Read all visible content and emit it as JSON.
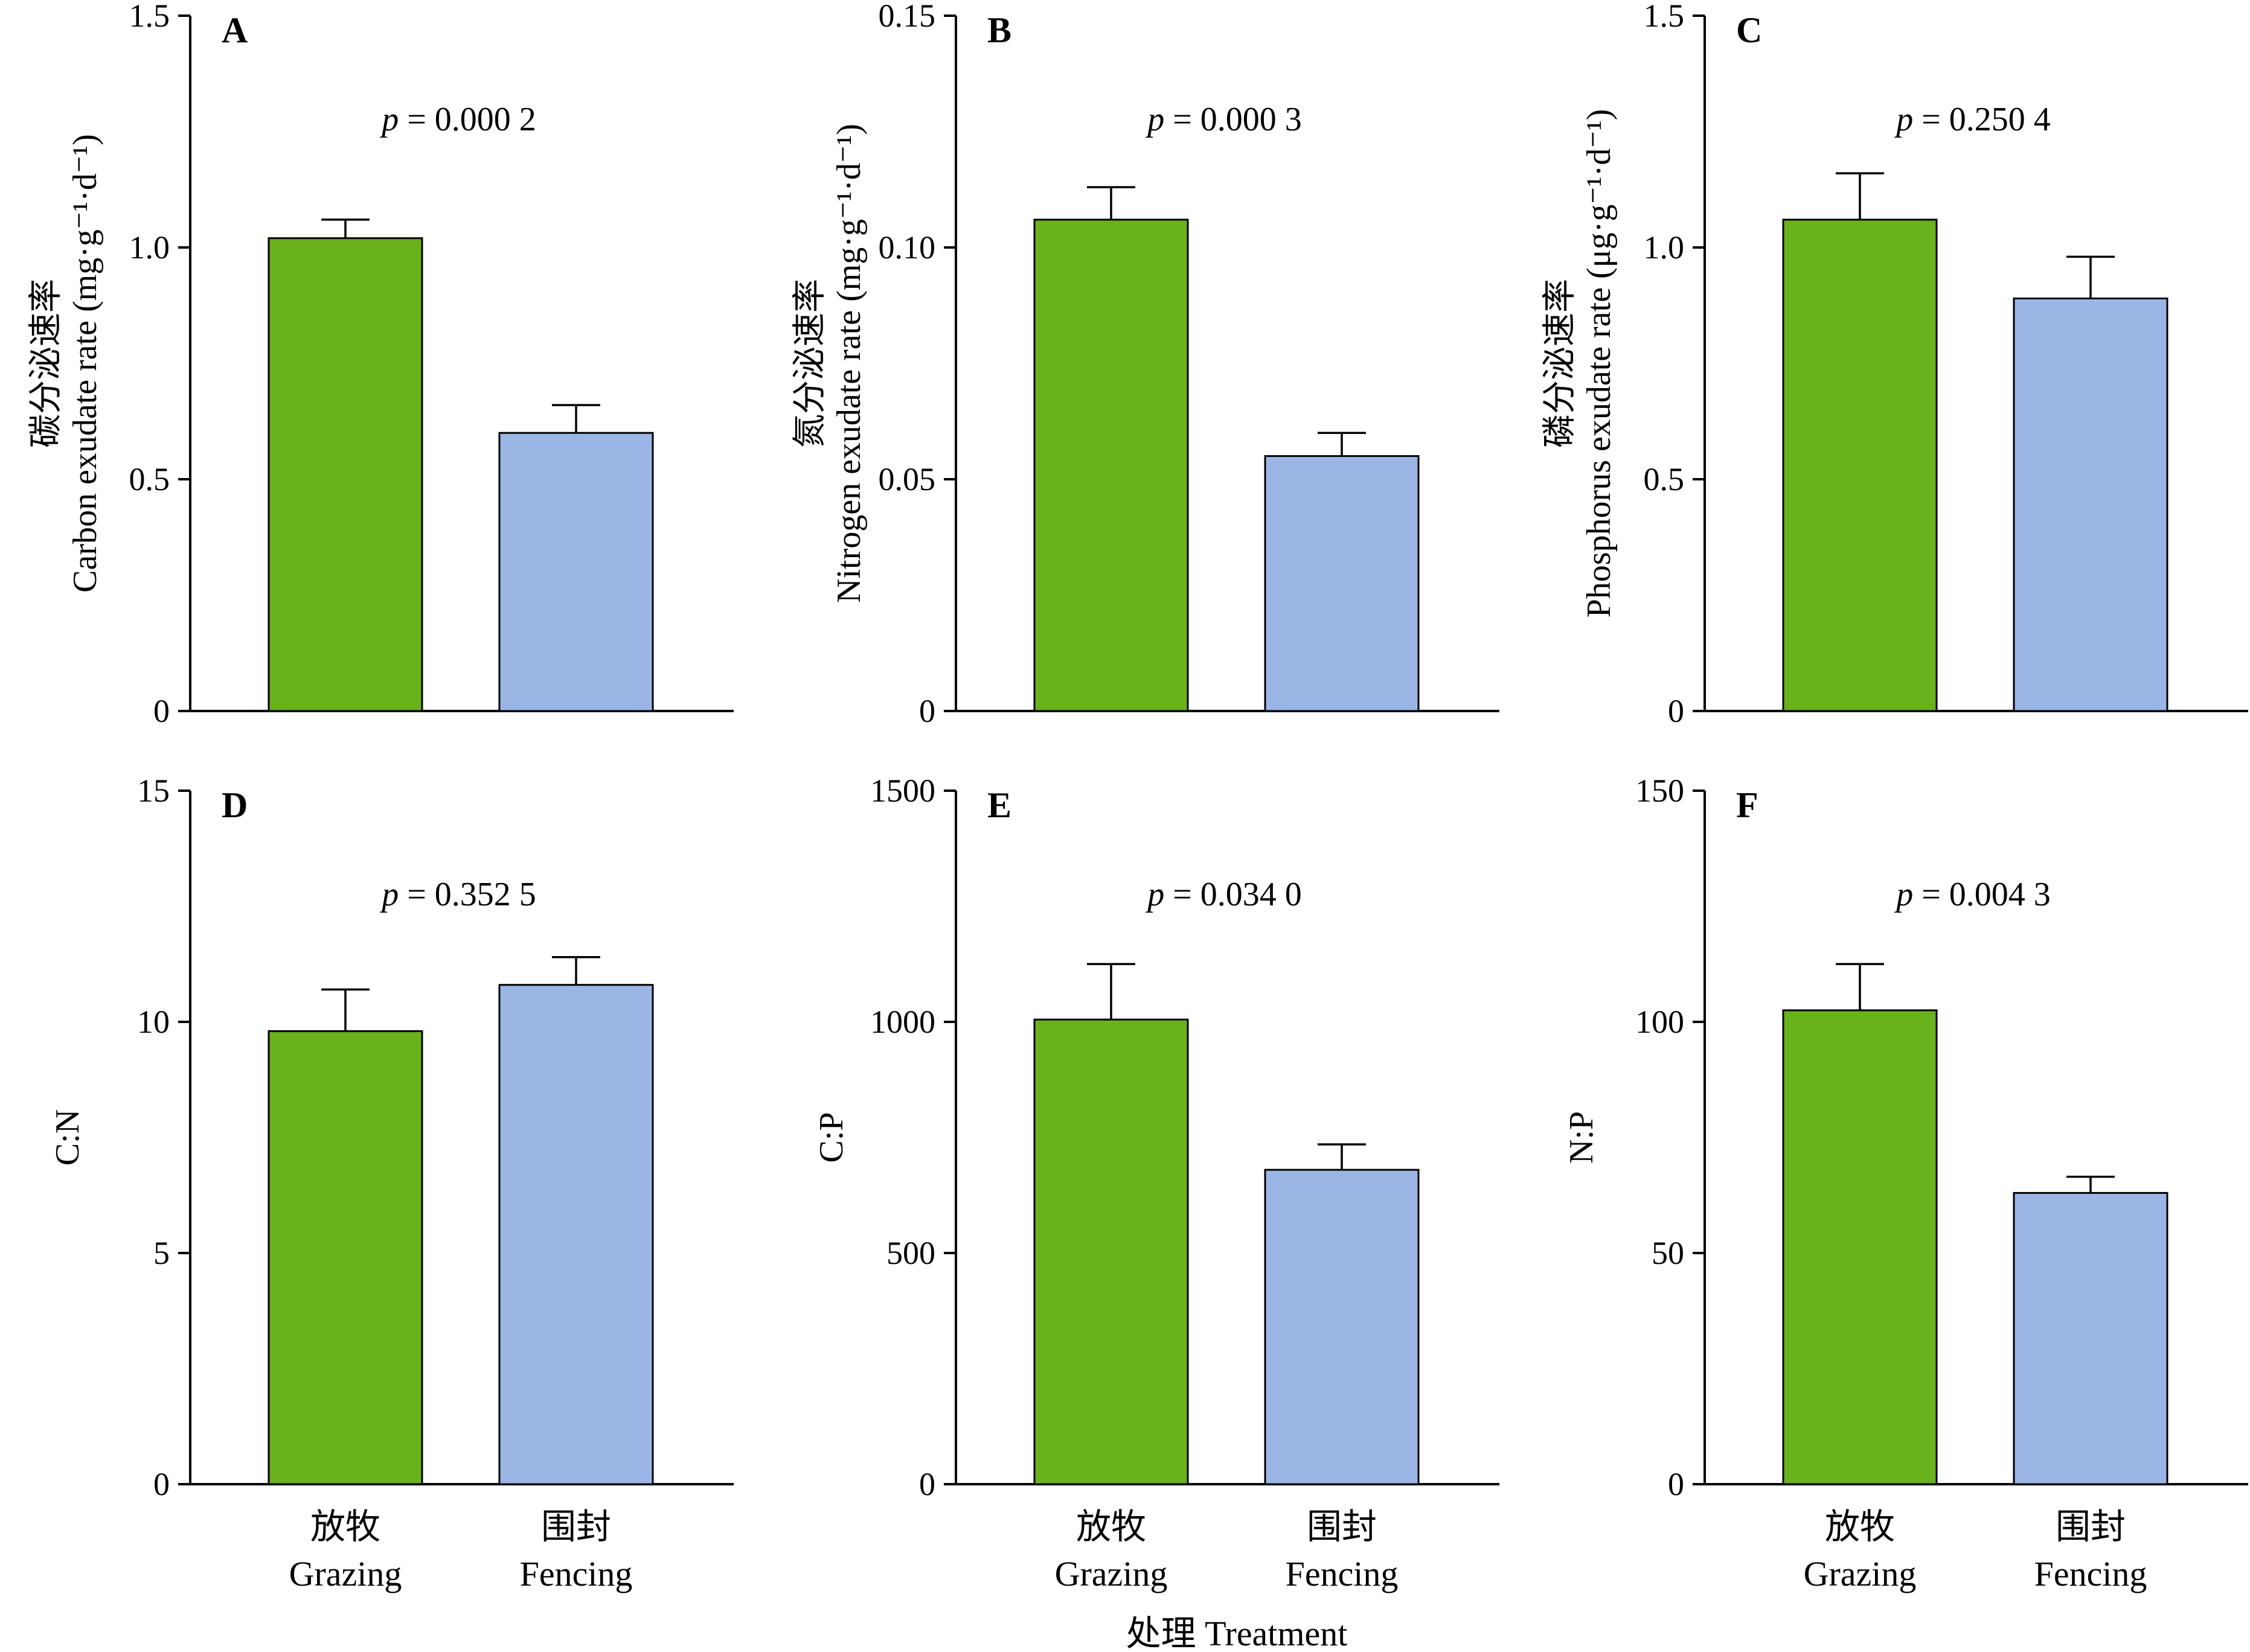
{
  "colors": {
    "grazing": "#6ab11e",
    "fencing": "#9bb6e5",
    "axis": "#000000",
    "bar_edge": "#000000"
  },
  "categories": [
    {
      "zh": "放牧",
      "en": "Grazing"
    },
    {
      "zh": "围封",
      "en": "Fencing"
    }
  ],
  "x_title": "处理 Treatment",
  "chart_data": [
    {
      "type": "bar",
      "panel": "A",
      "ylabel_zh": "碳分泌速率",
      "ylabel_en": "Carbon exudate rate (mg·g⁻¹·d⁻¹)",
      "ylim": [
        0,
        1.5
      ],
      "yticks": [
        "0",
        "0.5",
        "1.0",
        "1.5"
      ],
      "ytick_values": [
        0,
        0.5,
        1.0,
        1.5
      ],
      "categories": [
        "Grazing",
        "Fencing"
      ],
      "values": [
        1.02,
        0.6
      ],
      "errors": [
        0.04,
        0.06
      ],
      "p_value": "= 0.000 2"
    },
    {
      "type": "bar",
      "panel": "B",
      "ylabel_zh": "氮分泌速率",
      "ylabel_en": "Nitrogen exudate rate (mg·g⁻¹·d⁻¹)",
      "ylim": [
        0,
        0.15
      ],
      "yticks": [
        "0",
        "0.05",
        "0.10",
        "0.15"
      ],
      "ytick_values": [
        0,
        0.05,
        0.1,
        0.15
      ],
      "categories": [
        "Grazing",
        "Fencing"
      ],
      "values": [
        0.106,
        0.055
      ],
      "errors": [
        0.007,
        0.005
      ],
      "p_value": "= 0.000 3"
    },
    {
      "type": "bar",
      "panel": "C",
      "ylabel_zh": "磷分泌速率",
      "ylabel_en": "Phosphorus exudate rate (μg·g⁻¹·d⁻¹)",
      "ylim": [
        0,
        1.5
      ],
      "yticks": [
        "0",
        "0.5",
        "1.0",
        "1.5"
      ],
      "ytick_values": [
        0,
        0.5,
        1.0,
        1.5
      ],
      "categories": [
        "Grazing",
        "Fencing"
      ],
      "values": [
        1.06,
        0.89
      ],
      "errors": [
        0.1,
        0.09
      ],
      "p_value": "= 0.250 4"
    },
    {
      "type": "bar",
      "panel": "D",
      "ylabel_zh": "",
      "ylabel_en": "C:N",
      "ylim": [
        0,
        15
      ],
      "yticks": [
        "0",
        "5",
        "10",
        "15"
      ],
      "ytick_values": [
        0,
        5,
        10,
        15
      ],
      "categories": [
        "Grazing",
        "Fencing"
      ],
      "values": [
        9.8,
        10.8
      ],
      "errors": [
        0.9,
        0.6
      ],
      "p_value": "= 0.352 5"
    },
    {
      "type": "bar",
      "panel": "E",
      "ylabel_zh": "",
      "ylabel_en": "C:P",
      "ylim": [
        0,
        1500
      ],
      "yticks": [
        "0",
        "500",
        "1000",
        "1500"
      ],
      "ytick_values": [
        0,
        500,
        1000,
        1500
      ],
      "categories": [
        "Grazing",
        "Fencing"
      ],
      "values": [
        1005,
        680
      ],
      "errors": [
        120,
        55
      ],
      "p_value": "= 0.034 0"
    },
    {
      "type": "bar",
      "panel": "F",
      "ylabel_zh": "",
      "ylabel_en": "N:P",
      "ylim": [
        0,
        150
      ],
      "yticks": [
        "0",
        "50",
        "100",
        "150"
      ],
      "ytick_values": [
        0,
        50,
        100,
        150
      ],
      "categories": [
        "Grazing",
        "Fencing"
      ],
      "values": [
        102.5,
        63
      ],
      "errors": [
        10,
        3.5
      ],
      "p_value": "= 0.004 3"
    }
  ]
}
